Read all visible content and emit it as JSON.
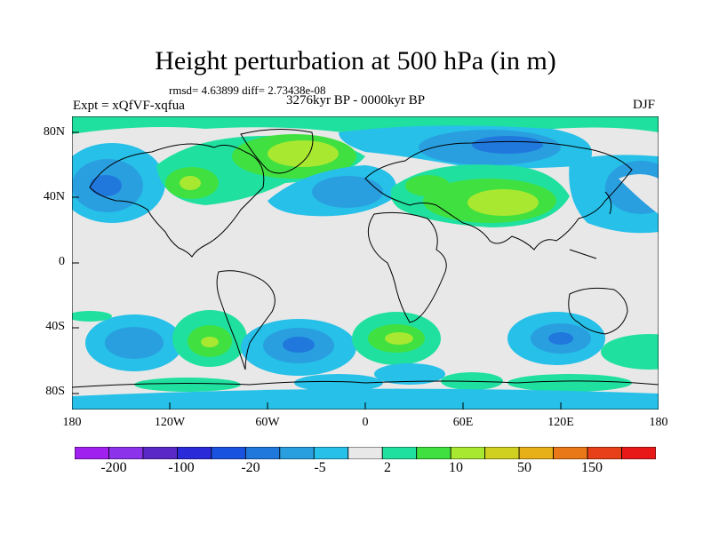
{
  "title": "Height perturbation at 500 hPa (in m)",
  "stats": "rmsd= 4.63899 diff= 2.73438e-08",
  "period": "3276kyr BP - 0000kyr BP",
  "experiment": "Expt = xQfVF-xqfua",
  "season": "DJF",
  "lat_labels": [
    "80N",
    "40N",
    "0",
    "40S",
    "80S"
  ],
  "lon_labels": [
    "180",
    "120W",
    "60W",
    "0",
    "60E",
    "120E",
    "180"
  ],
  "colorbar": {
    "colors": [
      "#a020f0",
      "#8c32ea",
      "#5b28c8",
      "#2a2ad8",
      "#1a52e0",
      "#2078dc",
      "#2a9fe0",
      "#26c0e8",
      "#e8e8e8",
      "#20e0a0",
      "#40e040",
      "#a8e830",
      "#d0d020",
      "#e8b018",
      "#e87818",
      "#e84018",
      "#e81818"
    ],
    "labels": [
      "-200",
      "-100",
      "-20",
      "-5",
      "2",
      "10",
      "50",
      "150"
    ]
  },
  "icons": {
    "map": "world-coastline-map"
  }
}
